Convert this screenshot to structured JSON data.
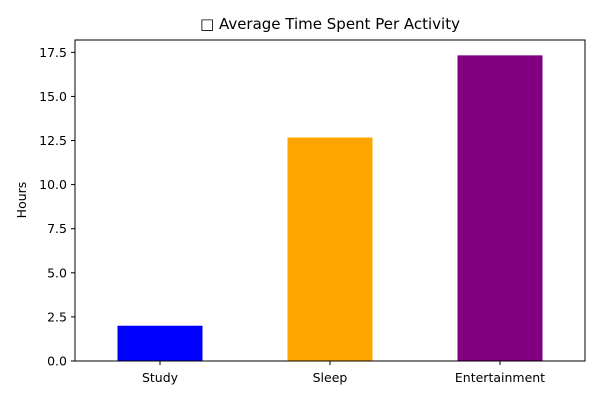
{
  "chart_data": {
    "type": "bar",
    "title": "□ Average Time Spent Per Activity",
    "xlabel": "",
    "ylabel": "Hours",
    "categories": [
      "Study",
      "Sleep",
      "Entertainment"
    ],
    "values": [
      2.0,
      12.67,
      17.33
    ],
    "colors": [
      "#0000ff",
      "#ffa500",
      "#800080"
    ],
    "ylim": [
      0,
      18.2
    ],
    "yticks": [
      0.0,
      2.5,
      5.0,
      7.5,
      10.0,
      12.5,
      15.0,
      17.5
    ],
    "ytick_labels": [
      "0.0",
      "2.5",
      "5.0",
      "7.5",
      "10.0",
      "12.5",
      "15.0",
      "17.5"
    ],
    "grid": false,
    "legend": "none"
  }
}
